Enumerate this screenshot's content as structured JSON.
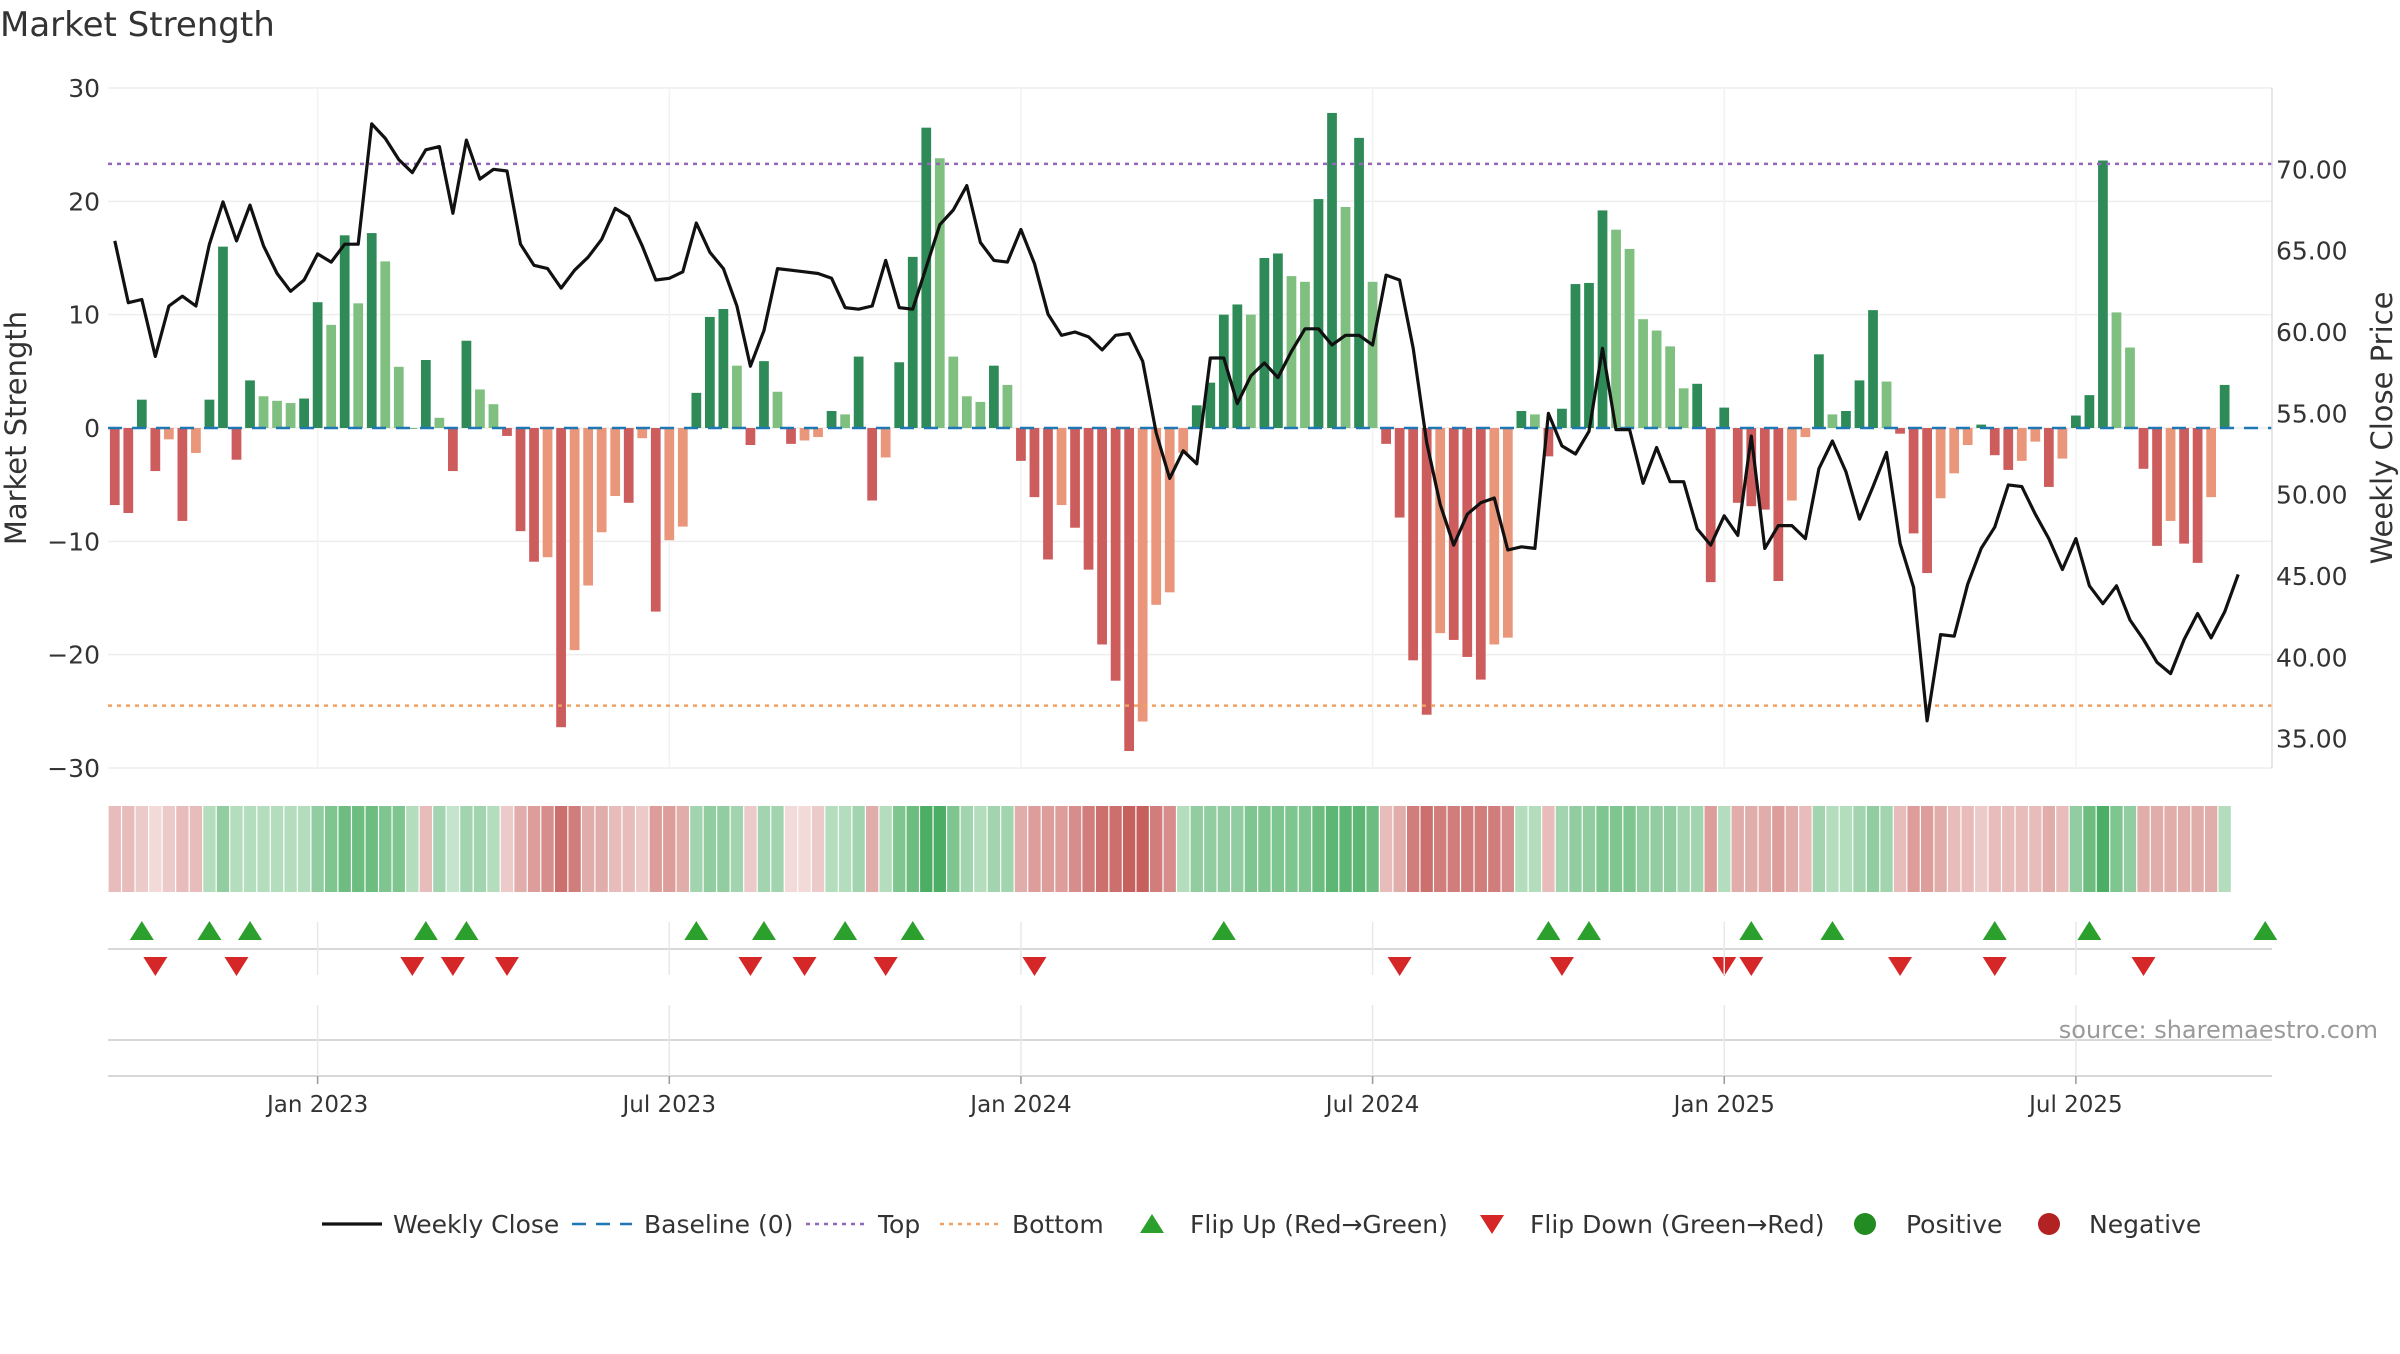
{
  "title": "Market Strength",
  "source": "source: sharemaestro.com",
  "colors": {
    "strong_green": "#2e8b57",
    "light_green": "#7fbf7f",
    "strong_red": "#cd5c5c",
    "light_red": "#e9967a",
    "price_line": "#111111",
    "baseline": "#1f77b4",
    "top": "#9467bd",
    "bottom": "#f0a060",
    "flip_up": "#2ca02c",
    "flip_down": "#d62728",
    "positive": "#228b22",
    "negative": "#b22222",
    "grid": "#eeeeee",
    "heat_green": "#3aa655",
    "heat_red": "#c0504d"
  },
  "legend": [
    {
      "key": "weekly_close",
      "label": "Weekly Close"
    },
    {
      "key": "baseline",
      "label": "Baseline (0)"
    },
    {
      "key": "top",
      "label": "Top"
    },
    {
      "key": "bottom",
      "label": "Bottom"
    },
    {
      "key": "flip_up",
      "label": "Flip Up (Red→Green)"
    },
    {
      "key": "flip_down",
      "label": "Flip Down (Green→Red)"
    },
    {
      "key": "positive",
      "label": "Positive"
    },
    {
      "key": "negative",
      "label": "Negative"
    }
  ],
  "chart_data": {
    "type": "bar",
    "title": "Market Strength",
    "ylabel": "Market Strength",
    "y2label": "Weekly Close Price",
    "ylim": [
      -30,
      30
    ],
    "y2lim": [
      33.2,
      75
    ],
    "yticks": [
      30,
      20,
      10,
      0,
      -10,
      -20,
      -30
    ],
    "ytick_labels": [
      "30",
      "20",
      "10",
      "0",
      "−10",
      "−20",
      "−30"
    ],
    "y2ticks": [
      70,
      65,
      60,
      55,
      50,
      45,
      40,
      35
    ],
    "y2tick_labels": [
      "70.00",
      "65.00",
      "60.00",
      "55.00",
      "50.00",
      "45.00",
      "40.00",
      "35.00"
    ],
    "x_range_weeks": [
      0,
      159
    ],
    "xticks": [
      {
        "week": 15,
        "label": "Jan 2023"
      },
      {
        "week": 41,
        "label": "Jul 2023"
      },
      {
        "week": 67,
        "label": "Jan 2024"
      },
      {
        "week": 93,
        "label": "Jul 2024"
      },
      {
        "week": 119,
        "label": "Jan 2025"
      },
      {
        "week": 145,
        "label": "Jul 2025"
      }
    ],
    "top_line": 23.3,
    "bottom_line": -24.5,
    "strength": [
      -6.8,
      -7.5,
      2.5,
      -3.8,
      -1,
      -8.2,
      -2.2,
      2.5,
      16,
      -2.8,
      4.2,
      2.8,
      2.4,
      2.2,
      2.6,
      11.1,
      9.1,
      17,
      11,
      17.2,
      14.7,
      5.4,
      0,
      6,
      0.9,
      -3.8,
      7.7,
      3.4,
      2.1,
      -0.7,
      -9.1,
      -11.8,
      -11.4,
      -26.4,
      -19.6,
      -13.9,
      -9.2,
      -6,
      -6.6,
      -0.9,
      -16.2,
      -9.9,
      -8.7,
      3.1,
      9.8,
      10.5,
      5.5,
      -1.5,
      5.9,
      3.2,
      -1.4,
      -1.1,
      -0.8,
      1.5,
      1.2,
      6.3,
      -6.4,
      -2.6,
      5.8,
      15.1,
      26.5,
      23.8,
      6.3,
      2.8,
      2.3,
      5.5,
      3.8,
      -2.9,
      -6.1,
      -11.6,
      -6.8,
      -8.8,
      -12.5,
      -19.1,
      -22.3,
      -28.5,
      -25.9,
      -15.6,
      -14.5,
      -2.2,
      2,
      4,
      10,
      10.9,
      10,
      15,
      15.4,
      13.4,
      12.9,
      20.2,
      27.8,
      19.5,
      25.6,
      12.9,
      -1.4,
      -7.9,
      -20.5,
      -25.3,
      -18.1,
      -18.7,
      -20.2,
      -22.2,
      -19.1,
      -18.5,
      1.5,
      1.2,
      -2.5,
      1.7,
      12.7,
      12.8,
      19.2,
      17.5,
      15.8,
      9.6,
      8.6,
      7.2,
      3.5,
      3.9,
      -13.6,
      1.8,
      -6.6,
      -6.9,
      -7.2,
      -13.5,
      -6.4,
      -0.8,
      6.5,
      1.2,
      1.5,
      4.2,
      10.4,
      4.1,
      -0.5,
      -9.3,
      -12.8,
      -6.2,
      -4,
      -1.5,
      0.3,
      -2.4,
      -3.7,
      -2.9,
      -1.2,
      -5.2,
      -2.7,
      1.1,
      2.9,
      23.6,
      10.2,
      7.1,
      -3.6,
      -10.4,
      -8.2,
      -10.2,
      -11.9,
      -6.1,
      3.8
    ],
    "weekly_close": [
      65.6,
      61.8,
      62,
      58.5,
      61.6,
      62.2,
      61.6,
      65.4,
      68,
      65.6,
      67.8,
      65.3,
      63.6,
      62.5,
      63.2,
      64.8,
      64.3,
      65.4,
      65.4,
      72.8,
      71.9,
      70.6,
      69.8,
      71.2,
      71.4,
      67.3,
      71.8,
      69.4,
      70,
      69.9,
      65.4,
      64.1,
      63.9,
      62.7,
      63.8,
      64.6,
      65.7,
      67.6,
      67.1,
      65.3,
      63.2,
      63.3,
      63.7,
      66.7,
      64.9,
      63.9,
      61.6,
      57.9,
      60.1,
      63.9,
      63.8,
      63.7,
      63.6,
      63.3,
      61.5,
      61.4,
      61.6,
      64.4,
      61.5,
      61.4,
      64,
      66.6,
      67.5,
      69,
      65.5,
      64.4,
      64.3,
      66.3,
      64.2,
      61.1,
      59.8,
      60,
      59.7,
      58.9,
      59.8,
      59.9,
      58.2,
      53.8,
      51,
      52.7,
      51.9,
      58.4,
      58.4,
      55.6,
      57.3,
      58.1,
      57.2,
      58.8,
      60.2,
      60.2,
      59.2,
      59.8,
      59.8,
      59.2,
      63.5,
      63.2,
      59,
      53.2,
      49.4,
      46.9,
      48.8,
      49.5,
      49.8,
      46.6,
      46.8,
      46.7,
      55,
      53,
      52.5,
      53.9,
      59,
      54,
      54,
      50.7,
      52.9,
      50.8,
      50.8,
      47.9,
      46.9,
      48.7,
      47.5,
      53.6,
      46.7,
      48.1,
      48.1,
      47.3,
      51.6,
      53.3,
      51.4,
      48.5,
      50.5,
      52.6,
      47,
      44.3,
      36.1,
      41.4,
      41.3,
      44.5,
      46.7,
      48,
      50.6,
      50.5,
      48.8,
      47.3,
      45.4,
      47.3,
      44.4,
      43.3,
      44.4,
      42.3,
      41.1,
      39.7,
      39,
      41.1,
      42.7,
      41.2,
      42.8,
      45.1
    ]
  },
  "heatmap": {
    "values": [
      -0.3,
      -0.3,
      -0.2,
      -0.1,
      -0.2,
      -0.3,
      -0.3,
      0.3,
      0.5,
      0.3,
      0.3,
      0.3,
      0.3,
      0.3,
      0.3,
      0.5,
      0.6,
      0.7,
      0.7,
      0.7,
      0.6,
      0.6,
      0.3,
      -0.3,
      0.4,
      0.2,
      0.4,
      0.4,
      0.3,
      -0.2,
      -0.4,
      -0.5,
      -0.6,
      -0.8,
      -0.7,
      -0.4,
      -0.4,
      -0.3,
      -0.3,
      -0.2,
      -0.5,
      -0.5,
      -0.4,
      0.4,
      0.5,
      0.5,
      0.4,
      -0.2,
      0.4,
      0.4,
      -0.1,
      -0.1,
      -0.2,
      0.3,
      0.3,
      0.4,
      -0.4,
      0.3,
      0.6,
      0.7,
      0.9,
      0.9,
      0.6,
      0.4,
      0.3,
      0.4,
      0.4,
      -0.4,
      -0.5,
      -0.5,
      -0.5,
      -0.6,
      -0.7,
      -0.8,
      -0.8,
      -0.9,
      -0.9,
      -0.7,
      -0.6,
      0.3,
      0.5,
      0.5,
      0.5,
      0.5,
      0.6,
      0.6,
      0.6,
      0.6,
      0.6,
      0.7,
      0.8,
      0.8,
      0.8,
      0.7,
      -0.3,
      -0.4,
      -0.7,
      -0.8,
      -0.7,
      -0.7,
      -0.7,
      -0.7,
      -0.7,
      -0.6,
      0.3,
      0.3,
      -0.3,
      0.4,
      0.5,
      0.5,
      0.6,
      0.6,
      0.6,
      0.5,
      0.5,
      0.5,
      0.4,
      0.4,
      -0.5,
      0.3,
      -0.4,
      -0.4,
      -0.4,
      -0.5,
      -0.4,
      -0.3,
      0.4,
      0.3,
      0.3,
      0.4,
      0.5,
      0.4,
      -0.3,
      -0.5,
      -0.5,
      -0.4,
      -0.3,
      -0.3,
      -0.2,
      -0.3,
      -0.3,
      -0.3,
      -0.3,
      -0.4,
      -0.3,
      0.5,
      0.7,
      0.9,
      0.6,
      0.5,
      -0.4,
      -0.4,
      -0.4,
      -0.4,
      -0.4,
      -0.4,
      0.3
    ]
  },
  "flips": {
    "up_weeks": [
      2,
      7,
      10,
      23,
      26,
      43,
      48,
      54,
      59,
      82,
      106,
      109,
      121,
      127,
      139,
      146,
      159
    ],
    "down_weeks": [
      3,
      9,
      22,
      25,
      29,
      47,
      51,
      57,
      68,
      95,
      107,
      119,
      121,
      132,
      139,
      150
    ]
  }
}
